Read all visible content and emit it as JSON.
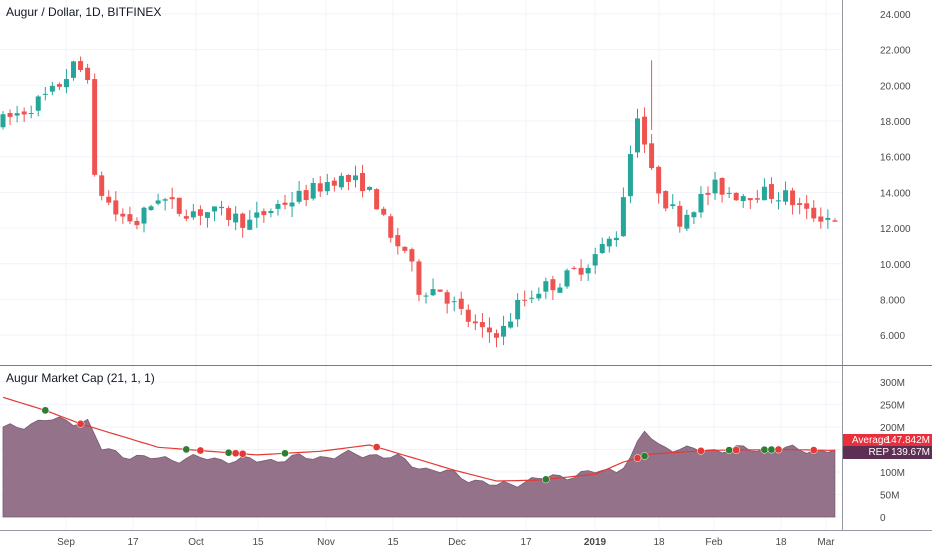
{
  "main": {
    "title": "Augur / Dollar, 1D, BITFINEX",
    "y_ticks": [
      "24.000",
      "22.000",
      "20.000",
      "18.000",
      "16.000",
      "14.000",
      "12.000",
      "10.000",
      "8.000",
      "6.000"
    ]
  },
  "indicator": {
    "title": "Augur Market Cap (21, 1, 1)",
    "y_ticks": [
      "300M",
      "250M",
      "200M",
      "150M",
      "100M",
      "50M",
      "0"
    ],
    "average_label": "Average",
    "average_value": "147.842M",
    "rep_label": "REP",
    "rep_value": "139.67M"
  },
  "x_axis": {
    "labels": [
      "Sep",
      "17",
      "Oct",
      "15",
      "Nov",
      "15",
      "Dec",
      "17",
      "2019",
      "18",
      "Feb",
      "18",
      "Mar"
    ]
  },
  "colors": {
    "up": "#26a69a",
    "down": "#ef5350",
    "area_fill": "#8e6b84",
    "average_line": "#e53935",
    "grid": "#f0f3fa",
    "axis_text": "#4a4a4a"
  },
  "chart_data": {
    "type": "candlestick",
    "symbol": "Augur / Dollar",
    "y_range": [
      5,
      24.5
    ],
    "price_keyframes": [
      [
        0,
        17.8
      ],
      [
        4,
        18.6
      ],
      [
        8,
        19.6
      ],
      [
        11,
        21.0
      ],
      [
        13,
        20.7
      ],
      [
        14,
        14.6
      ],
      [
        17,
        12.8
      ],
      [
        20,
        12.3
      ],
      [
        23,
        13.8
      ],
      [
        26,
        13.0
      ],
      [
        30,
        12.9
      ],
      [
        33,
        12.7
      ],
      [
        36,
        12.3
      ],
      [
        40,
        13.3
      ],
      [
        44,
        13.9
      ],
      [
        48,
        14.8
      ],
      [
        52,
        14.5
      ],
      [
        54,
        13.4
      ],
      [
        56,
        11.3
      ],
      [
        58,
        10.8
      ],
      [
        60,
        8.6
      ],
      [
        63,
        8.6
      ],
      [
        66,
        7.2
      ],
      [
        69,
        6.1
      ],
      [
        72,
        6.3
      ],
      [
        74,
        7.7
      ],
      [
        77,
        8.6
      ],
      [
        80,
        9.0
      ],
      [
        84,
        10.1
      ],
      [
        88,
        11.7
      ],
      [
        91,
        18.5
      ],
      [
        93,
        15.0
      ],
      [
        95,
        13.5
      ],
      [
        97,
        12.5
      ],
      [
        99,
        13.3
      ],
      [
        102,
        14.3
      ],
      [
        105,
        13.9
      ],
      [
        108,
        14.0
      ],
      [
        112,
        13.8
      ],
      [
        115,
        12.8
      ],
      [
        118,
        12.6
      ]
    ],
    "price_seed": 7,
    "market_cap_range_M": [
      0,
      330
    ],
    "market_cap_keyframes": [
      [
        0,
        195
      ],
      [
        6,
        215
      ],
      [
        12,
        212
      ],
      [
        14,
        150
      ],
      [
        20,
        130
      ],
      [
        28,
        130
      ],
      [
        36,
        125
      ],
      [
        44,
        133
      ],
      [
        52,
        140
      ],
      [
        56,
        130
      ],
      [
        60,
        107
      ],
      [
        64,
        95
      ],
      [
        70,
        68
      ],
      [
        74,
        80
      ],
      [
        80,
        92
      ],
      [
        87,
        105
      ],
      [
        89,
        130
      ],
      [
        91,
        190
      ],
      [
        93,
        160
      ],
      [
        97,
        148
      ],
      [
        103,
        150
      ],
      [
        110,
        150
      ],
      [
        116,
        148
      ]
    ],
    "average_keyframes": [
      [
        0,
        266
      ],
      [
        6,
        237
      ],
      [
        11,
        207
      ],
      [
        22,
        155
      ],
      [
        36,
        138
      ],
      [
        45,
        146
      ],
      [
        52,
        160
      ],
      [
        57,
        137
      ],
      [
        64,
        104
      ],
      [
        70,
        80
      ],
      [
        76,
        82
      ],
      [
        84,
        95
      ],
      [
        88,
        122
      ],
      [
        92,
        140
      ],
      [
        100,
        148
      ],
      [
        110,
        150
      ],
      [
        118,
        148
      ]
    ],
    "crossover_markers": [
      {
        "i": 6,
        "color": "green"
      },
      {
        "i": 11,
        "color": "red"
      },
      {
        "i": 26,
        "color": "green"
      },
      {
        "i": 28,
        "color": "red"
      },
      {
        "i": 32,
        "color": "green"
      },
      {
        "i": 33,
        "color": "red"
      },
      {
        "i": 34,
        "color": "red"
      },
      {
        "i": 40,
        "color": "green"
      },
      {
        "i": 53,
        "color": "red"
      },
      {
        "i": 77,
        "color": "green"
      },
      {
        "i": 90,
        "color": "red"
      },
      {
        "i": 91,
        "color": "green"
      },
      {
        "i": 99,
        "color": "red"
      },
      {
        "i": 103,
        "color": "green"
      },
      {
        "i": 104,
        "color": "red"
      },
      {
        "i": 108,
        "color": "green"
      },
      {
        "i": 109,
        "color": "green"
      },
      {
        "i": 110,
        "color": "red"
      },
      {
        "i": 115,
        "color": "red"
      }
    ],
    "series": [
      {
        "name": "Average",
        "value": "147.842M"
      },
      {
        "name": "REP",
        "value": "139.67M"
      }
    ]
  }
}
